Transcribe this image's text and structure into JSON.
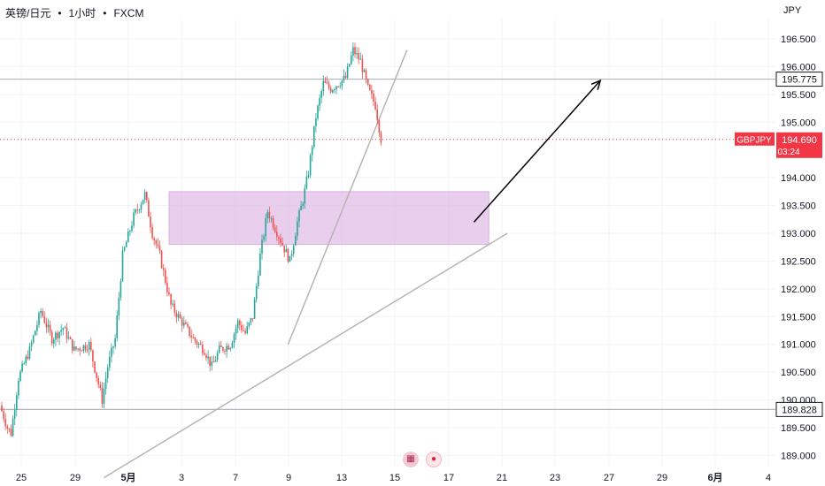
{
  "header": {
    "symbol": "英镑/日元",
    "interval": "1小时",
    "exchange": "FXCM",
    "sep": "•",
    "currency": "JPY"
  },
  "icons": {
    "news": "calendar-news-icon",
    "event": "record-dot-icon"
  },
  "colors": {
    "up": "#26a69a",
    "down": "#ef5350",
    "zone_fill": "#e1bee7",
    "price_line": "#f23645",
    "level_line": "#b2b5be",
    "trend_line": "#b9b4b4",
    "arrow": "#000000"
  },
  "chart_data": {
    "type": "candlestick",
    "symbol_label": "GBPJPY",
    "y_ticks": [
      189.0,
      189.5,
      190.0,
      190.5,
      191.0,
      191.5,
      192.0,
      192.5,
      193.0,
      193.5,
      194.0,
      195.0,
      195.5,
      196.0,
      196.5
    ],
    "ylim": [
      188.8,
      196.85
    ],
    "x_ticks": [
      "25",
      "29",
      "5月",
      "3",
      "7",
      "9",
      "13",
      "15",
      "17",
      "21",
      "23",
      "27",
      "29",
      "6月",
      "4"
    ],
    "price_path": [
      [
        0,
        189.9
      ],
      [
        4,
        189.5
      ],
      [
        6,
        189.4
      ],
      [
        10,
        190.4
      ],
      [
        16,
        190.9
      ],
      [
        22,
        191.6
      ],
      [
        28,
        191.1
      ],
      [
        34,
        191.3
      ],
      [
        40,
        190.9
      ],
      [
        48,
        191.0
      ],
      [
        55,
        190.0
      ],
      [
        58,
        190.6
      ],
      [
        62,
        191.1
      ],
      [
        66,
        192.6
      ],
      [
        72,
        193.3
      ],
      [
        78,
        193.7
      ],
      [
        82,
        193.0
      ],
      [
        86,
        192.6
      ],
      [
        92,
        191.7
      ],
      [
        98,
        191.4
      ],
      [
        104,
        191.1
      ],
      [
        110,
        190.9
      ],
      [
        114,
        190.6
      ],
      [
        118,
        190.9
      ],
      [
        124,
        191.0
      ],
      [
        128,
        191.4
      ],
      [
        132,
        191.2
      ],
      [
        136,
        191.5
      ],
      [
        140,
        192.6
      ],
      [
        144,
        193.4
      ],
      [
        148,
        193.1
      ],
      [
        152,
        192.8
      ],
      [
        156,
        192.5
      ],
      [
        160,
        193.2
      ],
      [
        163,
        193.6
      ],
      [
        166,
        194.1
      ],
      [
        170,
        195.1
      ],
      [
        174,
        195.7
      ],
      [
        178,
        195.6
      ],
      [
        182,
        195.7
      ],
      [
        186,
        195.8
      ],
      [
        190,
        196.3
      ],
      [
        194,
        196.1
      ],
      [
        198,
        195.6
      ],
      [
        202,
        195.3
      ],
      [
        205,
        194.7
      ]
    ],
    "levels": [
      {
        "price": 195.775,
        "label": "195.775"
      },
      {
        "price": 189.828,
        "label": "189.828"
      }
    ],
    "last_price": {
      "price": 194.69,
      "label": "194.690",
      "countdown": "03:24"
    },
    "zone": {
      "from_x": 90,
      "to_x": 262,
      "top": 193.75,
      "bottom": 192.8
    },
    "trend_lines": [
      {
        "from": [
          55,
          188.6
        ],
        "to": [
          272,
          193.0
        ]
      },
      {
        "from": [
          154,
          191.0
        ],
        "to": [
          218,
          196.3
        ]
      }
    ],
    "arrow": {
      "from": [
        254,
        193.2
      ],
      "to": [
        322,
        195.75
      ]
    },
    "grid": true
  }
}
